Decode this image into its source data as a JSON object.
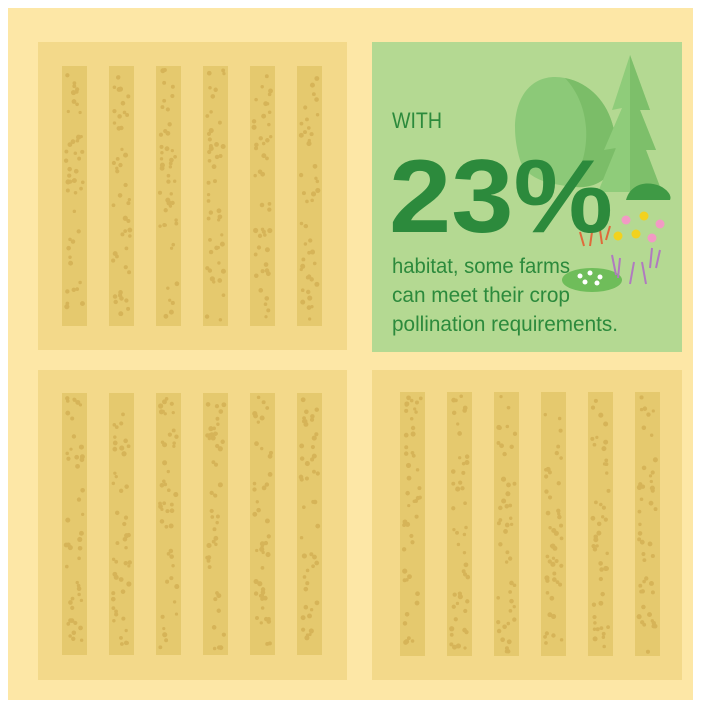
{
  "callout": {
    "lead": "WITH",
    "figure": "23%",
    "lines": [
      "habitat, some farms",
      "can meet their crop",
      "pollination requirements."
    ]
  }
}
